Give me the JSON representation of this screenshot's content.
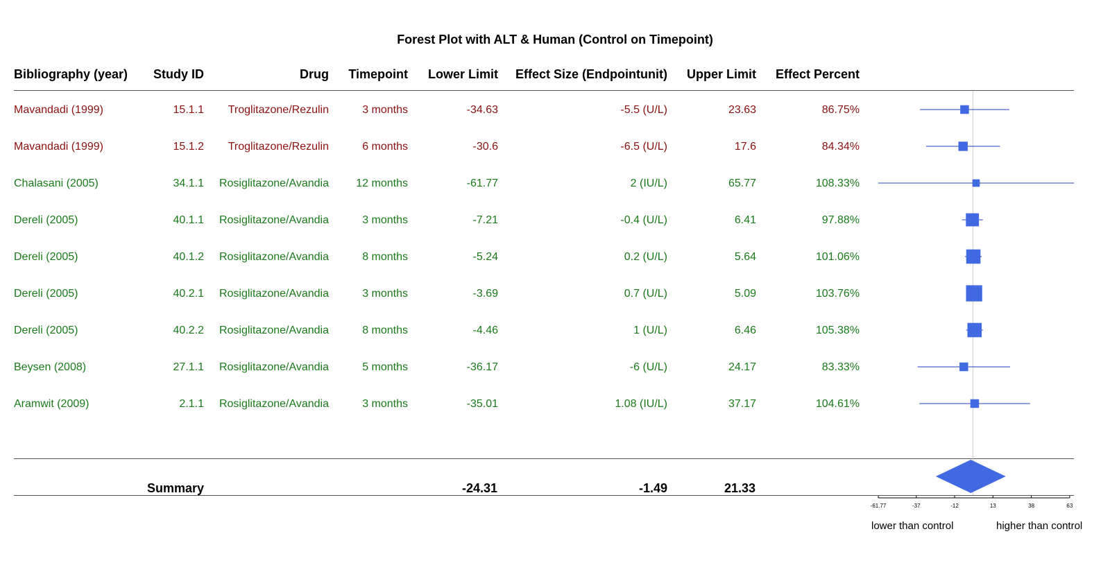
{
  "chart_data": {
    "type": "forest",
    "title": "Forest Plot with ALT & Human (Control on Timepoint)",
    "columns": [
      "Bibliography (year)",
      "Study ID",
      "Drug",
      "Timepoint",
      "Lower Limit",
      "Effect Size (Endpointunit)",
      "Upper Limit",
      "Effect Percent"
    ],
    "rows": [
      {
        "bib": "Mavandadi (1999)",
        "id": "15.1.1",
        "drug": "Troglitazone/Rezulin",
        "time": "3 months",
        "lower": "-34.63",
        "effect": "-5.5 (U/L)",
        "upper": "23.63",
        "percent": "86.75%",
        "color": "#8b1010",
        "lo": -34.63,
        "est": -5.5,
        "hi": 23.63,
        "weight": 0.5
      },
      {
        "bib": "Mavandadi (1999)",
        "id": "15.1.2",
        "drug": "Troglitazone/Rezulin",
        "time": "6 months",
        "lower": "-30.6",
        "effect": "-6.5 (U/L)",
        "upper": "17.6",
        "percent": "84.34%",
        "color": "#8b1010",
        "lo": -30.6,
        "est": -6.5,
        "hi": 17.6,
        "weight": 0.6
      },
      {
        "bib": "Chalasani (2005)",
        "id": "34.1.1",
        "drug": "Rosiglitazone/Avandia",
        "time": "12 months",
        "lower": "-61.77",
        "effect": "2 (IU/L)",
        "upper": "65.77",
        "percent": "108.33%",
        "color": "#1a7a1a",
        "lo": -61.77,
        "est": 2,
        "hi": 65.77,
        "weight": 0.3
      },
      {
        "bib": "Dereli (2005)",
        "id": "40.1.1",
        "drug": "Rosiglitazone/Avandia",
        "time": "3 months",
        "lower": "-7.21",
        "effect": "-0.4 (U/L)",
        "upper": "6.41",
        "percent": "97.88%",
        "color": "#1a7a1a",
        "lo": -7.21,
        "est": -0.4,
        "hi": 6.41,
        "weight": 1.2
      },
      {
        "bib": "Dereli (2005)",
        "id": "40.1.2",
        "drug": "Rosiglitazone/Avandia",
        "time": "8 months",
        "lower": "-5.24",
        "effect": "0.2 (U/L)",
        "upper": "5.64",
        "percent": "101.06%",
        "color": "#1a7a1a",
        "lo": -5.24,
        "est": 0.2,
        "hi": 5.64,
        "weight": 1.4
      },
      {
        "bib": "Dereli (2005)",
        "id": "40.2.1",
        "drug": "Rosiglitazone/Avandia",
        "time": "3 months",
        "lower": "-3.69",
        "effect": "0.7 (U/L)",
        "upper": "5.09",
        "percent": "103.76%",
        "color": "#1a7a1a",
        "lo": -3.69,
        "est": 0.7,
        "hi": 5.09,
        "weight": 1.7
      },
      {
        "bib": "Dereli (2005)",
        "id": "40.2.2",
        "drug": "Rosiglitazone/Avandia",
        "time": "8 months",
        "lower": "-4.46",
        "effect": "1 (U/L)",
        "upper": "6.46",
        "percent": "105.38%",
        "color": "#1a7a1a",
        "lo": -4.46,
        "est": 1,
        "hi": 6.46,
        "weight": 1.4
      },
      {
        "bib": "Beysen (2008)",
        "id": "27.1.1",
        "drug": "Rosiglitazone/Avandia",
        "time": "5 months",
        "lower": "-36.17",
        "effect": "-6 (U/L)",
        "upper": "24.17",
        "percent": "83.33%",
        "color": "#1a7a1a",
        "lo": -36.17,
        "est": -6,
        "hi": 24.17,
        "weight": 0.5
      },
      {
        "bib": "Aramwit (2009)",
        "id": "2.1.1",
        "drug": "Rosiglitazone/Avandia",
        "time": "3 months",
        "lower": "-35.01",
        "effect": "1.08 (IU/L)",
        "upper": "37.17",
        "percent": "104.61%",
        "color": "#1a7a1a",
        "lo": -35.01,
        "est": 1.08,
        "hi": 37.17,
        "weight": 0.5
      }
    ],
    "summary": {
      "label": "Summary",
      "lower": "-24.31",
      "effect": "-1.49",
      "upper": "21.33",
      "lo": -24.31,
      "est": -1.49,
      "hi": 21.33
    },
    "x_ticks": [
      "-61.77",
      "-37",
      "-12",
      "13",
      "38",
      "63"
    ],
    "x_tick_values": [
      -61.77,
      -37,
      -12,
      13,
      38,
      63
    ],
    "xlim": [
      -61.77,
      65.77
    ],
    "reference_line": 0,
    "axis_left_label": "lower than control",
    "axis_right_label": "higher than control",
    "marker_color": "#4169e1",
    "line_color": "#1f3fbf"
  }
}
